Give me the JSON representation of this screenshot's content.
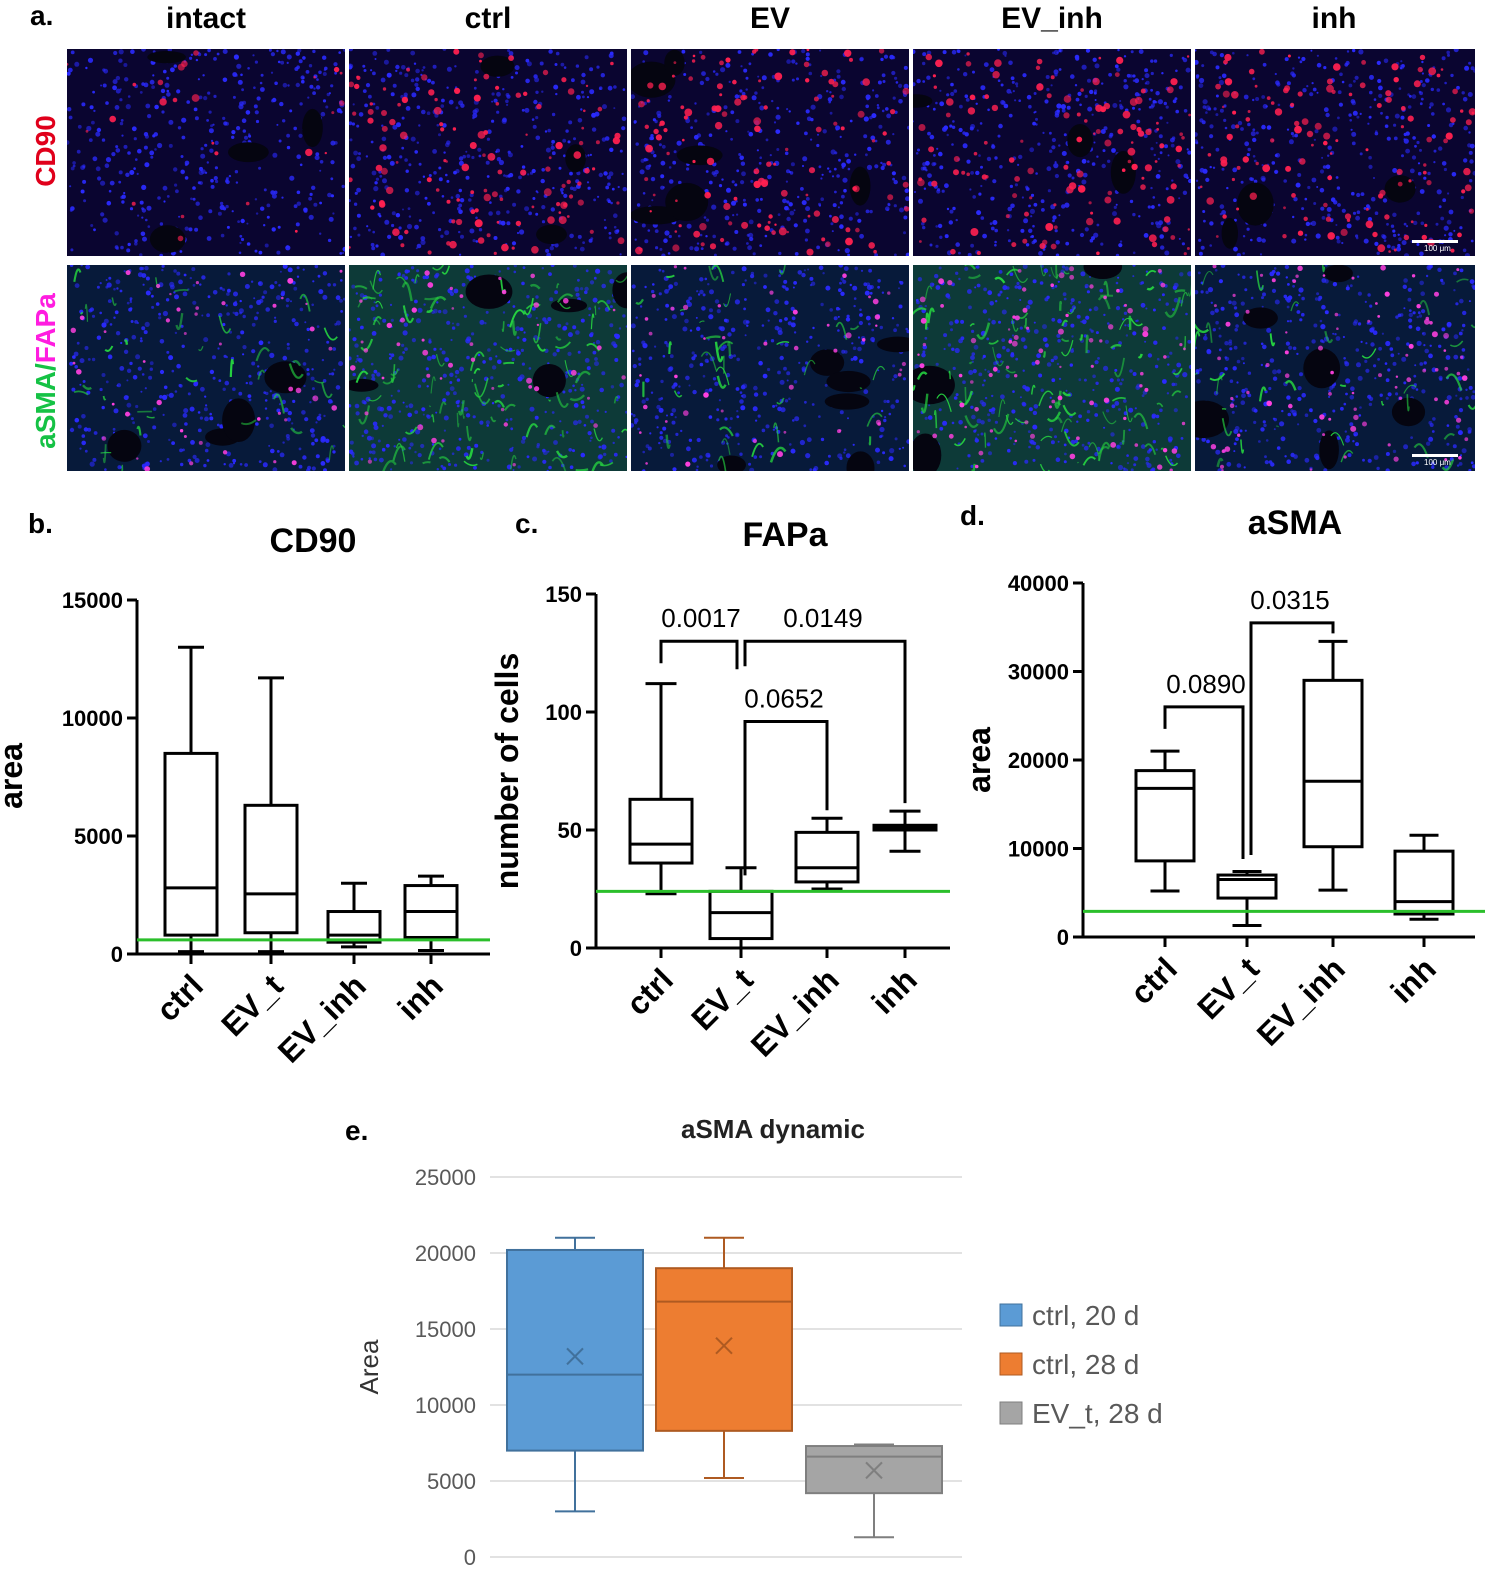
{
  "panel_a": {
    "letter": "a.",
    "columns": [
      "intact",
      "ctrl",
      "EV",
      "EV_inh",
      "inh"
    ],
    "row_labels": [
      {
        "parts": [
          {
            "text": "CD90",
            "color": "#e0001b"
          }
        ]
      },
      {
        "parts": [
          {
            "text": "aSMA",
            "color": "#15c245"
          },
          {
            "text": "/",
            "color": "#15c245"
          },
          {
            "text": "FAPa",
            "color": "#ff1de0"
          }
        ]
      }
    ],
    "scale_bar_label": "100 μm",
    "colors": {
      "nuclei": "#1a1aff",
      "cd90": "#ff2050",
      "asma": "#25d040",
      "fapa": "#ff40e0"
    }
  },
  "panel_letters": {
    "b": "b.",
    "c": "c.",
    "d": "d.",
    "e": "e."
  },
  "chart_data": [
    {
      "id": "b",
      "type": "box",
      "title": "CD90",
      "ylabel": "area",
      "categories": [
        "ctrl",
        "EV_t",
        "EV_inh",
        "inh"
      ],
      "ylim": [
        0,
        15000
      ],
      "yticks": [
        0,
        5000,
        10000,
        15000
      ],
      "boxes": [
        {
          "min": 100,
          "q1": 800,
          "median": 2800,
          "q3": 8500,
          "max": 13000
        },
        {
          "min": 100,
          "q1": 900,
          "median": 2550,
          "q3": 6300,
          "max": 11700
        },
        {
          "min": 300,
          "q1": 500,
          "median": 800,
          "q3": 1800,
          "max": 3000
        },
        {
          "min": 150,
          "q1": 700,
          "median": 1800,
          "q3": 2900,
          "max": 3300
        }
      ],
      "reference_line": {
        "value": 600,
        "color": "#2bbf2b"
      }
    },
    {
      "id": "c",
      "type": "box",
      "title": "FAPa",
      "ylabel": "number of cells",
      "categories": [
        "ctrl",
        "EV_t",
        "EV_inh",
        "inh"
      ],
      "ylim": [
        0,
        150
      ],
      "yticks": [
        0,
        50,
        100,
        150
      ],
      "boxes": [
        {
          "min": 23,
          "q1": 36,
          "median": 44,
          "q3": 63,
          "max": 112
        },
        {
          "min": 0,
          "q1": 4,
          "median": 15,
          "q3": 24,
          "max": 34
        },
        {
          "min": 25,
          "q1": 28,
          "median": 34,
          "q3": 49,
          "max": 55
        },
        {
          "min": 41,
          "q1": 50,
          "median": 51,
          "q3": 52,
          "max": 58
        }
      ],
      "reference_line": {
        "value": 24,
        "color": "#2bbf2b"
      },
      "annotations": [
        {
          "text": "0.0017",
          "from": 0,
          "to": 1,
          "y": 130
        },
        {
          "text": "0.0149",
          "from": 1,
          "to": 3,
          "y": 130
        },
        {
          "text": "0.0652",
          "from": 1,
          "to": 2,
          "y": 96
        }
      ]
    },
    {
      "id": "d",
      "type": "box",
      "title": "aSMA",
      "ylabel": "area",
      "categories": [
        "ctrl",
        "EV_t",
        "EV_inh",
        "inh"
      ],
      "ylim": [
        0,
        40000
      ],
      "yticks": [
        0,
        10000,
        20000,
        30000,
        40000
      ],
      "boxes": [
        {
          "min": 5200,
          "q1": 8600,
          "median": 16800,
          "q3": 18800,
          "max": 21000
        },
        {
          "min": 1300,
          "q1": 4400,
          "median": 6500,
          "q3": 7000,
          "max": 7400
        },
        {
          "min": 5300,
          "q1": 10200,
          "median": 17600,
          "q3": 29000,
          "max": 33400
        },
        {
          "min": 2000,
          "q1": 2600,
          "median": 4000,
          "q3": 9700,
          "max": 11500
        }
      ],
      "reference_line": {
        "value": 2900,
        "color": "#2bbf2b"
      },
      "annotations": [
        {
          "text": "0.0890",
          "from": 0,
          "to": 1,
          "y": 26000
        },
        {
          "text": "0.0315",
          "from": 1,
          "to": 2,
          "y": 35500
        }
      ]
    },
    {
      "id": "e",
      "type": "box",
      "title": "aSMA dynamic",
      "ylabel": "Area",
      "ylim": [
        0,
        25000
      ],
      "yticks": [
        0,
        5000,
        10000,
        15000,
        20000,
        25000
      ],
      "grid": true,
      "legend_position": "right",
      "series": [
        {
          "name": "ctrl, 20 d",
          "color": "#5b9bd5",
          "stroke": "#41719c",
          "min": 3000,
          "q1": 7000,
          "median": 12000,
          "q3": 20200,
          "max": 21000,
          "mean": 13200
        },
        {
          "name": "ctrl, 28 d",
          "color": "#ed7d31",
          "stroke": "#ae5a21",
          "min": 5200,
          "q1": 8300,
          "median": 16800,
          "q3": 19000,
          "max": 21000,
          "mean": 13900
        },
        {
          "name": "EV_t, 28 d",
          "color": "#a5a5a5",
          "stroke": "#7f7f7f",
          "min": 1300,
          "q1": 4200,
          "median": 6600,
          "q3": 7300,
          "max": 7400,
          "mean": 5700
        }
      ]
    }
  ]
}
